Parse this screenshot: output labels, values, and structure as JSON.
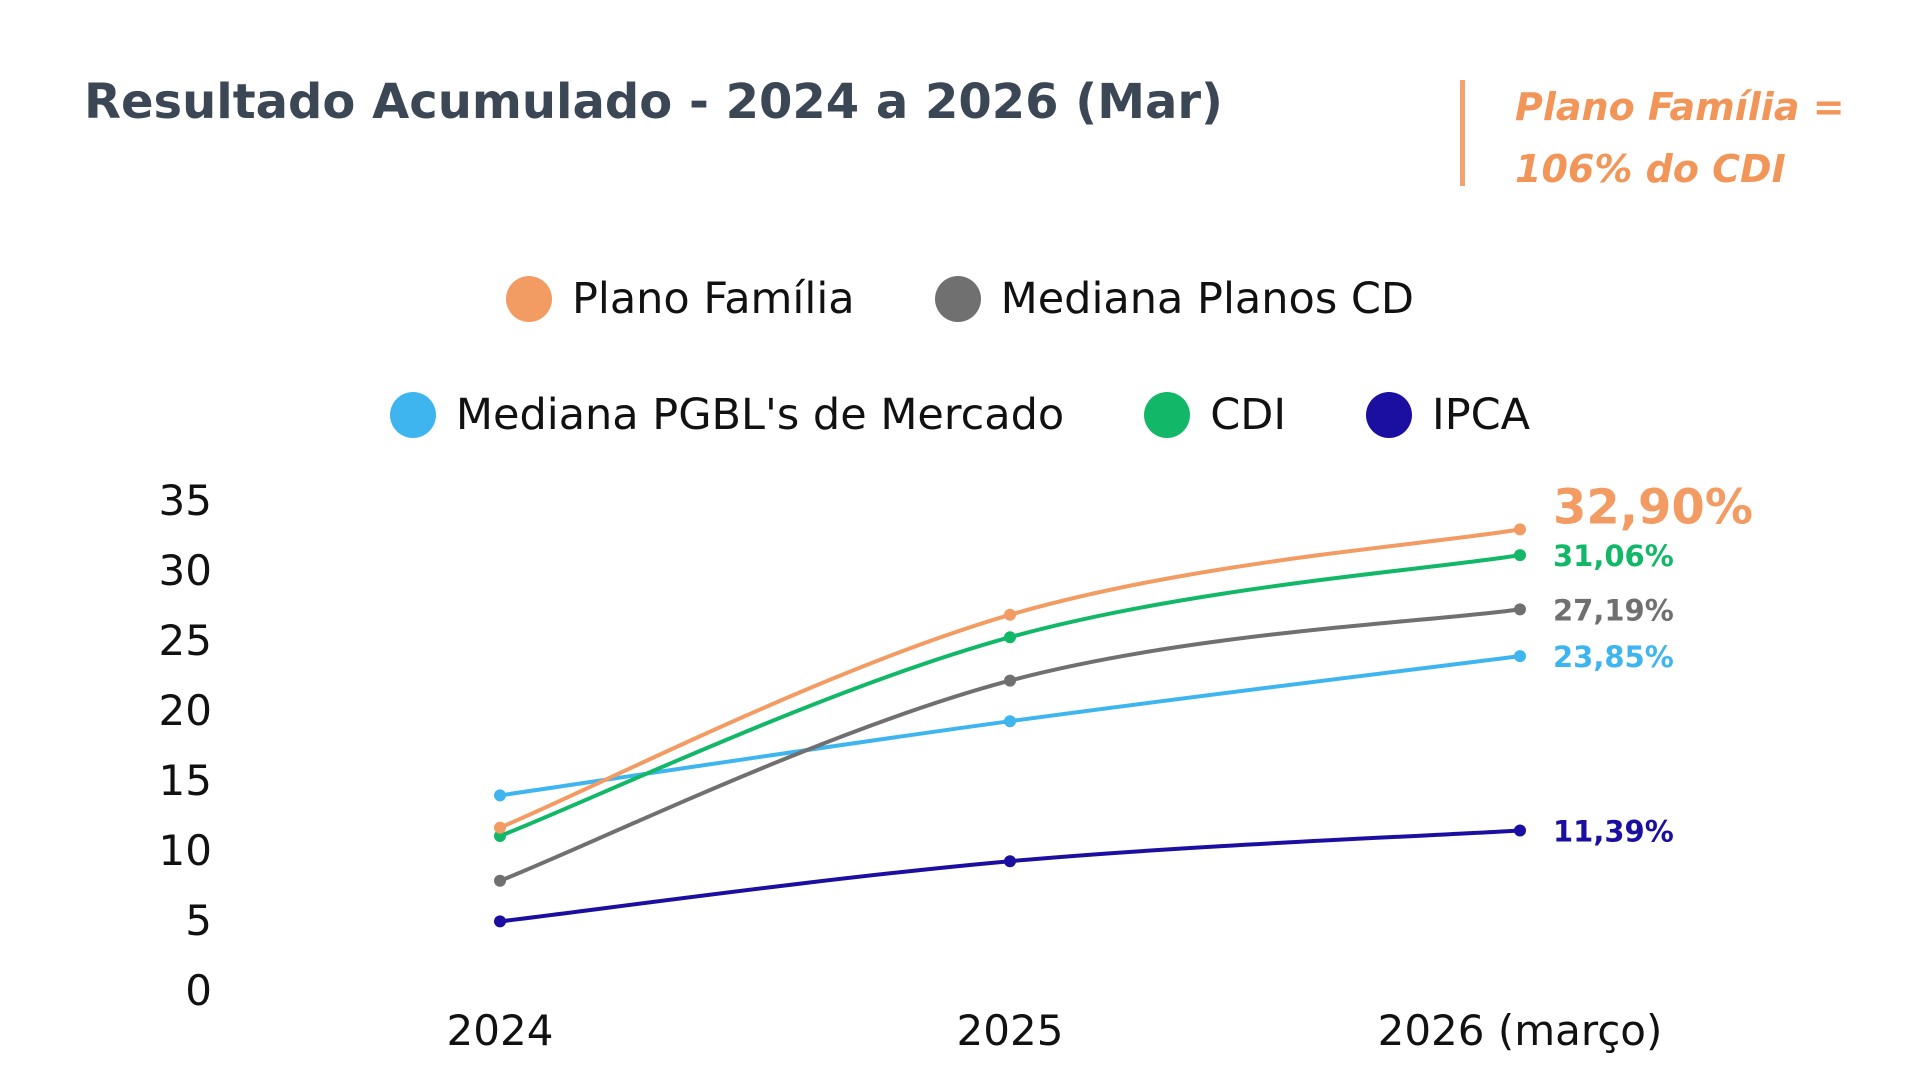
{
  "title": "Resultado Acumulado - 2024 a 2026 (Mar)",
  "callout": "Plano Família = 106% do CDI",
  "chart_data": {
    "type": "line",
    "title": "Resultado Acumulado - 2024 a 2026 (Mar)",
    "categories": [
      "2024",
      "2025",
      "2026 (março)"
    ],
    "ylim": [
      0,
      35
    ],
    "yticks": [
      "0",
      "5",
      "10",
      "15",
      "20",
      "25",
      "30",
      "35"
    ],
    "ytick_values": [
      0,
      5,
      10,
      15,
      20,
      25,
      30,
      35
    ],
    "legend_rows": [
      [
        0,
        1
      ],
      [
        2,
        3,
        4
      ]
    ],
    "series": [
      {
        "name": "Plano Família",
        "color": "#f29b62",
        "values": [
          11.6,
          26.8,
          32.9
        ],
        "end_label": "32,90%"
      },
      {
        "name": "Mediana Planos CD",
        "color": "#707070",
        "values": [
          7.8,
          22.1,
          27.19
        ],
        "end_label": "27,19%"
      },
      {
        "name": "Mediana PGBL's de Mercado",
        "color": "#3fb5f0",
        "values": [
          13.9,
          19.2,
          23.85
        ],
        "end_label": "23,85%"
      },
      {
        "name": "CDI",
        "color": "#12b868",
        "values": [
          11.0,
          25.2,
          31.06
        ],
        "end_label": "31,06%"
      },
      {
        "name": "IPCA",
        "color": "#1a0fa0",
        "values": [
          4.9,
          9.2,
          11.39
        ],
        "end_label": "11,39%"
      }
    ]
  }
}
